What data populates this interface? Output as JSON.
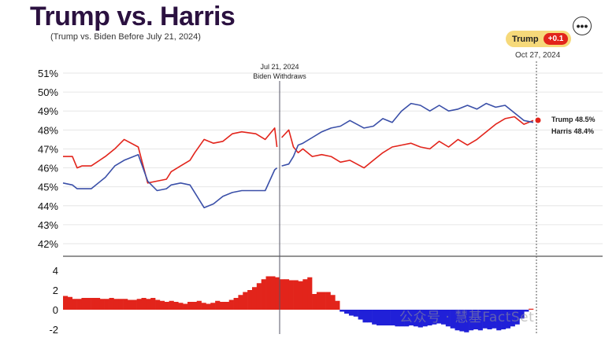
{
  "header": {
    "title": "Trump vs. Harris",
    "subtitle": "(Trump vs. Biden Before July 21, 2024)",
    "menu_icon": "more-horizontal-icon",
    "menu_glyph": "•••"
  },
  "badge": {
    "leader": "Trump",
    "delta": "+0.1"
  },
  "date_label": "Oct 27, 2024",
  "watermark": "公众号 · 慧基FactSet",
  "colors": {
    "trump": "#e2241b",
    "harris": "#3a4fa8",
    "spread_negative": "#2020d8",
    "title": "#2b1140"
  },
  "chart_data": [
    {
      "type": "line",
      "title": "Trump vs. Harris",
      "subtitle": "(Trump vs. Biden Before July 21, 2024)",
      "x_range": [
        "Mar 2024",
        "Oct 27, 2024"
      ],
      "ylim": [
        41.5,
        51
      ],
      "y_ticks": [
        "51%",
        "50%",
        "49%",
        "48%",
        "47%",
        "46%",
        "45%",
        "44%",
        "43%",
        "42%"
      ],
      "grid": true,
      "annotations": [
        {
          "x": 0.46,
          "line1": "Jul 21, 2024",
          "line2": "Biden Withdraws"
        }
      ],
      "end_labels": [
        "Trump 48.5%",
        "Harris 48.4%"
      ],
      "series": [
        {
          "name": "Trump",
          "color": "#e2241b",
          "x": [
            0,
            0.02,
            0.03,
            0.04,
            0.06,
            0.09,
            0.11,
            0.13,
            0.16,
            0.18,
            0.2,
            0.22,
            0.23,
            0.25,
            0.27,
            0.28,
            0.3,
            0.32,
            0.34,
            0.36,
            0.38,
            0.41,
            0.43,
            0.45,
            0.455,
            0.465,
            0.48,
            0.49,
            0.5,
            0.51,
            0.53,
            0.55,
            0.57,
            0.59,
            0.61,
            0.64,
            0.66,
            0.68,
            0.7,
            0.72,
            0.74,
            0.76,
            0.78,
            0.8,
            0.82,
            0.84,
            0.86,
            0.88,
            0.9,
            0.92,
            0.94,
            0.96,
            0.98,
            1.0
          ],
          "values": [
            46.6,
            46.6,
            46.0,
            46.1,
            46.1,
            46.6,
            47.0,
            47.5,
            47.1,
            45.2,
            45.3,
            45.4,
            45.8,
            46.1,
            46.4,
            46.8,
            47.5,
            47.3,
            47.4,
            47.8,
            47.9,
            47.8,
            47.5,
            48.1,
            47.1,
            47.6,
            48.0,
            47.1,
            46.8,
            47.0,
            46.6,
            46.7,
            46.6,
            46.3,
            46.4,
            46.0,
            46.4,
            46.8,
            47.1,
            47.2,
            47.3,
            47.1,
            47.0,
            47.4,
            47.1,
            47.5,
            47.2,
            47.5,
            47.9,
            48.3,
            48.6,
            48.7,
            48.3,
            48.5
          ]
        },
        {
          "name": "Harris",
          "color": "#3a4fa8",
          "x": [
            0,
            0.02,
            0.03,
            0.04,
            0.06,
            0.09,
            0.11,
            0.13,
            0.16,
            0.18,
            0.2,
            0.22,
            0.23,
            0.25,
            0.27,
            0.28,
            0.3,
            0.32,
            0.34,
            0.36,
            0.38,
            0.41,
            0.43,
            0.45,
            0.455,
            0.465,
            0.48,
            0.49,
            0.5,
            0.51,
            0.53,
            0.55,
            0.57,
            0.59,
            0.61,
            0.64,
            0.66,
            0.68,
            0.7,
            0.72,
            0.74,
            0.76,
            0.78,
            0.8,
            0.82,
            0.84,
            0.86,
            0.88,
            0.9,
            0.92,
            0.94,
            0.96,
            0.98,
            1.0
          ],
          "values": [
            45.2,
            45.1,
            44.9,
            44.9,
            44.9,
            45.5,
            46.1,
            46.4,
            46.7,
            45.3,
            44.8,
            44.9,
            45.1,
            45.2,
            45.1,
            44.7,
            43.9,
            44.1,
            44.5,
            44.7,
            44.8,
            44.8,
            44.8,
            45.9,
            46.0,
            46.1,
            46.2,
            46.6,
            47.2,
            47.3,
            47.6,
            47.9,
            48.1,
            48.2,
            48.5,
            48.1,
            48.2,
            48.6,
            48.4,
            49.0,
            49.4,
            49.3,
            49.0,
            49.3,
            49.0,
            49.1,
            49.3,
            49.1,
            49.4,
            49.2,
            49.3,
            48.9,
            48.5,
            48.4
          ]
        }
      ]
    },
    {
      "type": "bar",
      "y_ticks": [
        "4",
        "2",
        "0",
        "-2"
      ],
      "ylim": [
        -2.5,
        4.5
      ],
      "colors": {
        "positive": "#e2241b",
        "negative": "#2020d8"
      },
      "x_range": [
        "Mar 2024",
        "Oct 27, 2024"
      ],
      "values": [
        1.4,
        1.3,
        1.1,
        1.1,
        1.2,
        1.2,
        1.2,
        1.2,
        1.1,
        1.1,
        1.2,
        1.1,
        1.1,
        1.1,
        1.0,
        1.0,
        1.1,
        1.2,
        1.1,
        1.2,
        1.0,
        0.9,
        0.8,
        0.9,
        0.8,
        0.7,
        0.6,
        0.8,
        0.8,
        0.9,
        0.7,
        0.6,
        0.7,
        0.9,
        0.8,
        0.8,
        1.0,
        1.2,
        1.5,
        1.8,
        2.0,
        2.3,
        2.7,
        3.1,
        3.4,
        3.4,
        3.3,
        3.1,
        3.1,
        3.0,
        3.0,
        2.9,
        3.1,
        3.3,
        1.6,
        1.8,
        1.8,
        1.8,
        1.5,
        0.9,
        -0.2,
        -0.4,
        -0.6,
        -0.7,
        -1.0,
        -1.3,
        -1.3,
        -1.5,
        -1.6,
        -1.6,
        -1.6,
        -1.6,
        -1.7,
        -1.7,
        -1.7,
        -1.6,
        -1.7,
        -1.8,
        -1.7,
        -1.6,
        -1.5,
        -1.4,
        -1.5,
        -1.7,
        -1.9,
        -2.1,
        -2.2,
        -2.3,
        -2.1,
        -2.0,
        -2.1,
        -1.9,
        -2.0,
        -1.9,
        -2.1,
        -2.0,
        -1.9,
        -1.7,
        -1.5,
        -0.9,
        -0.2,
        0.1
      ]
    }
  ]
}
